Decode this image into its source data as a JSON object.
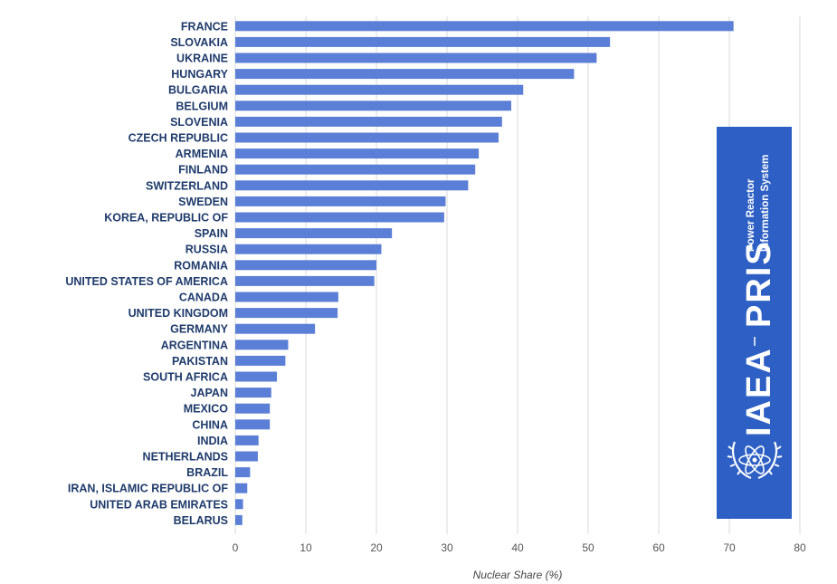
{
  "colors": {
    "bar": "#5b7fd6",
    "logo_bg": "#2d5fc4",
    "label_text": "#1f3b6b",
    "grid": "#d9d9d9"
  },
  "chart_data": {
    "type": "bar",
    "orientation": "horizontal",
    "title": "",
    "xlabel": "Nuclear Share (%)",
    "ylabel": "",
    "xlim": [
      0,
      80
    ],
    "xticks": [
      0,
      10,
      20,
      30,
      40,
      50,
      60,
      70,
      80
    ],
    "grid": true,
    "categories": [
      "FRANCE",
      "SLOVAKIA",
      "UKRAINE",
      "HUNGARY",
      "BULGARIA",
      "BELGIUM",
      "SLOVENIA",
      "CZECH REPUBLIC",
      "ARMENIA",
      "FINLAND",
      "SWITZERLAND",
      "SWEDEN",
      "KOREA, REPUBLIC OF",
      "SPAIN",
      "RUSSIA",
      "ROMANIA",
      "UNITED STATES OF AMERICA",
      "CANADA",
      "UNITED KINGDOM",
      "GERMANY",
      "ARGENTINA",
      "PAKISTAN",
      "SOUTH AFRICA",
      "JAPAN",
      "MEXICO",
      "CHINA",
      "INDIA",
      "NETHERLANDS",
      "BRAZIL",
      "IRAN, ISLAMIC REPUBLIC OF",
      "UNITED ARAB EMIRATES",
      "BELARUS"
    ],
    "values": [
      70.6,
      53.1,
      51.2,
      48.0,
      40.8,
      39.1,
      37.8,
      37.3,
      34.5,
      34.0,
      33.0,
      29.8,
      29.6,
      22.2,
      20.7,
      20.0,
      19.7,
      14.6,
      14.5,
      11.3,
      7.5,
      7.1,
      5.9,
      5.1,
      4.9,
      4.9,
      3.3,
      3.2,
      2.1,
      1.7,
      1.1,
      1.0
    ]
  },
  "logo": {
    "org": "IAEA",
    "product": "PRIS",
    "line1": "Power Reactor",
    "line2": "Information System",
    "icon": "atom-laurel-icon"
  }
}
